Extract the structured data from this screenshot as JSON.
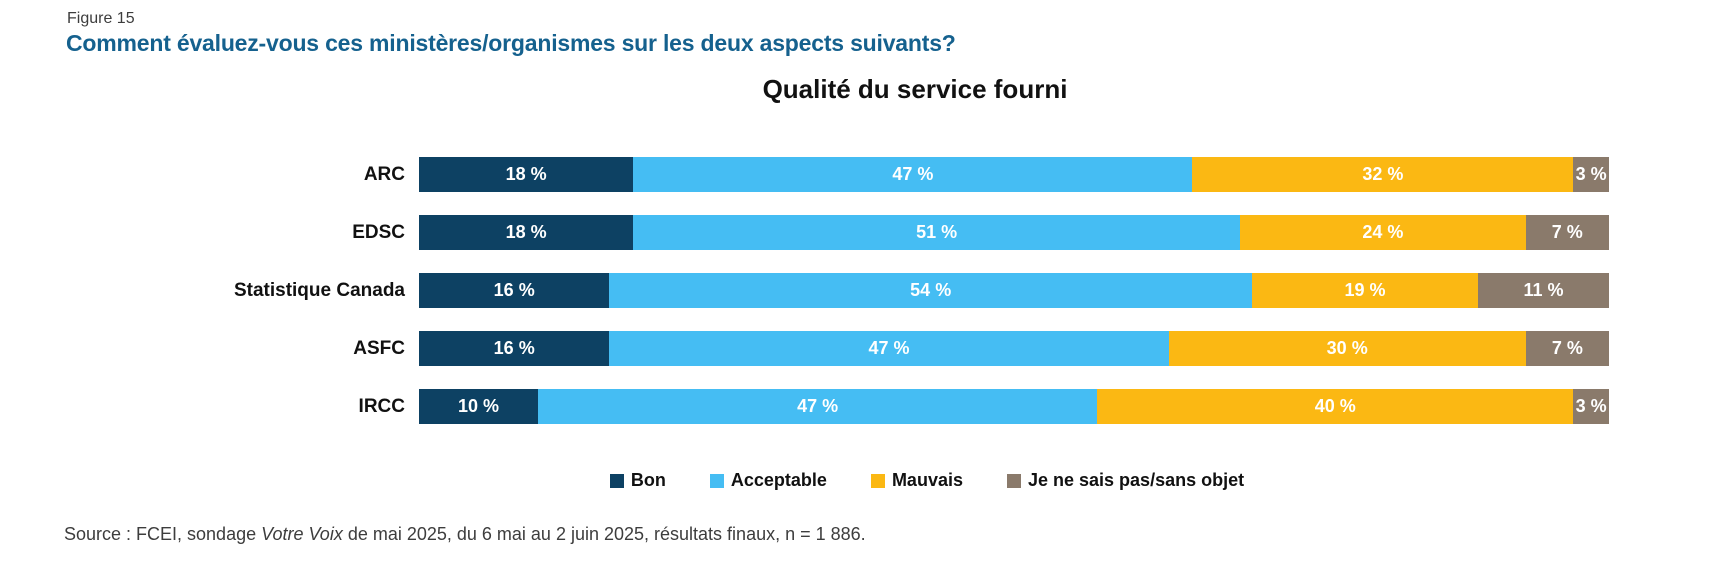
{
  "figure_label": "Figure 15",
  "main_title": "Comment évaluez-vous ces ministères/organismes sur les deux aspects suivants?",
  "colors": {
    "title_blue": "#15618e",
    "bon": "#0d4163",
    "acceptable": "#45bdf3",
    "mauvais": "#fbb813",
    "nsp": "#8a7a6b"
  },
  "chart_data": {
    "type": "bar",
    "orientation": "horizontal-stacked",
    "title": "Qualité du service fourni",
    "categories": [
      "ARC",
      "EDSC",
      "Statistique Canada",
      "ASFC",
      "IRCC"
    ],
    "series": [
      {
        "name": "Bon",
        "color": "#0d4163",
        "values": [
          18,
          18,
          16,
          16,
          10
        ]
      },
      {
        "name": "Acceptable",
        "color": "#45bdf3",
        "values": [
          47,
          51,
          54,
          47,
          47
        ]
      },
      {
        "name": "Mauvais",
        "color": "#fbb813",
        "values": [
          32,
          24,
          19,
          30,
          40
        ]
      },
      {
        "name": "Je ne sais pas/sans objet",
        "color": "#8a7a6b",
        "values": [
          3,
          7,
          11,
          7,
          3
        ]
      }
    ],
    "value_suffix": " %",
    "xlim": [
      0,
      100
    ],
    "grid": false,
    "legend_position": "bottom"
  },
  "source": {
    "prefix": "Source : FCEI, sondage ",
    "journal": "Votre Voix",
    "suffix": " de mai 2025, du 6 mai au 2 juin 2025, résultats finaux, n = 1 886."
  }
}
